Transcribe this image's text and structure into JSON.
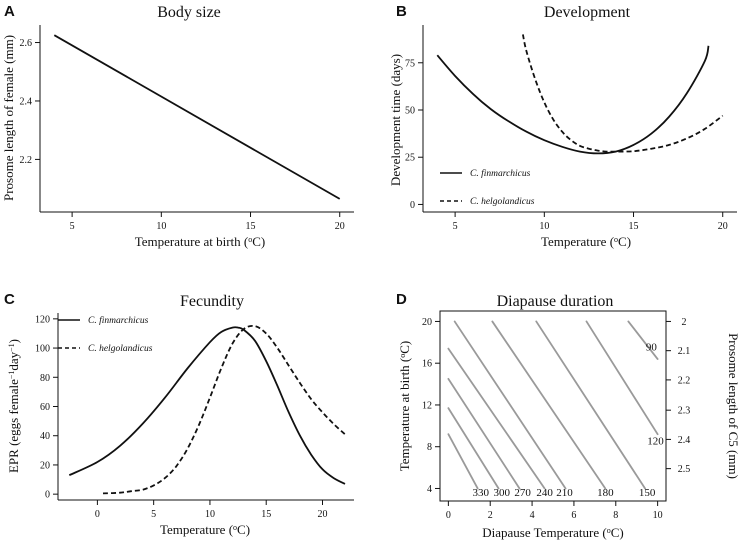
{
  "chart_data": [
    {
      "panel": "A",
      "type": "line",
      "title": "Body size",
      "xlabel": "Temperature at birth (°C)",
      "ylabel": "Prosome length of female (mm)",
      "xlim": [
        3.2,
        20.8
      ],
      "ylim": [
        2.02,
        2.66
      ],
      "x_ticks": [
        5,
        10,
        15,
        20
      ],
      "y_ticks": [
        2.2,
        2.4,
        2.6
      ],
      "series": [
        {
          "name": "Prosome length",
          "style": "solid",
          "x": [
            4,
            20
          ],
          "y": [
            2.625,
            2.065
          ]
        }
      ]
    },
    {
      "panel": "B",
      "type": "line",
      "title": "Development",
      "xlabel": "Temperature (°C)",
      "ylabel": "Development time (days)",
      "xlim": [
        3.2,
        20.8
      ],
      "ylim": [
        -4,
        95
      ],
      "x_ticks": [
        5,
        10,
        15,
        20
      ],
      "y_ticks": [
        0,
        25,
        50,
        75
      ],
      "legend": {
        "placement": "bottom-left",
        "entries": [
          {
            "label": "C. finmarchicus",
            "style": "solid"
          },
          {
            "label": "C. helgolandicus",
            "style": "dashed"
          }
        ]
      },
      "series": [
        {
          "name": "C. finmarchicus",
          "style": "solid",
          "x": [
            4,
            5,
            6,
            7,
            8,
            9,
            10,
            11,
            12,
            13,
            14,
            15,
            16,
            17,
            18,
            19,
            19.2
          ],
          "y": [
            79,
            68,
            58.5,
            50.5,
            44,
            38.5,
            34,
            30.5,
            28,
            27,
            28,
            31.5,
            37.5,
            46.5,
            59,
            76,
            84
          ]
        },
        {
          "name": "C. helgolandicus",
          "style": "dashed",
          "x": [
            8.8,
            9,
            9.5,
            10,
            10.5,
            11,
            11.5,
            12,
            12.5,
            13,
            13.5,
            14,
            15,
            16,
            17,
            18,
            19,
            20
          ],
          "y": [
            90,
            81,
            66,
            54,
            45,
            38.5,
            34,
            31,
            29.5,
            28.5,
            28,
            28,
            28.2,
            29.5,
            31.5,
            35,
            40,
            47
          ]
        }
      ]
    },
    {
      "panel": "C",
      "type": "line",
      "title": "Fecundity",
      "xlabel": "Temperature (°C)",
      "ylabel": "EPR (eggs female⁻¹day⁻¹)",
      "xlim": [
        -3.5,
        22.8
      ],
      "ylim": [
        -4,
        124
      ],
      "x_ticks": [
        0,
        5,
        10,
        15,
        20
      ],
      "y_ticks": [
        0,
        20,
        40,
        60,
        80,
        100,
        120
      ],
      "legend": {
        "placement": "top-left",
        "entries": [
          {
            "label": "C. finmarchicus",
            "style": "solid"
          },
          {
            "label": "C. helgolandicus",
            "style": "dashed"
          }
        ]
      },
      "series": [
        {
          "name": "C. finmarchicus",
          "style": "solid",
          "x": [
            -2.5,
            0,
            2,
            4,
            6,
            8,
            10,
            11,
            12,
            12.5,
            13,
            14,
            15,
            16,
            17,
            18,
            19,
            20,
            21,
            22
          ],
          "y": [
            13,
            22,
            33,
            48,
            66,
            86,
            104,
            111,
            114,
            114,
            112.5,
            105,
            91,
            74,
            56,
            40,
            27,
            17,
            11,
            7
          ]
        },
        {
          "name": "C. helgolandicus",
          "style": "dashed",
          "x": [
            0.5,
            2,
            3,
            4,
            5,
            6,
            7,
            8,
            9,
            10,
            11,
            12,
            13,
            14,
            15,
            16,
            17,
            18,
            19,
            20,
            21,
            22
          ],
          "y": [
            0.5,
            1,
            2,
            3,
            6,
            11,
            19,
            31,
            47,
            66,
            86,
            103,
            113,
            115,
            110,
            100,
            88,
            76,
            65,
            56,
            48,
            41
          ]
        }
      ]
    },
    {
      "panel": "D",
      "type": "contour",
      "title": "Diapause duration",
      "xlabel": "Diapause Temperature (°C)",
      "ylabel": "Temperature at birth (°C)",
      "ylabel_right": "Prosome length of C5 (mm)",
      "xlim": [
        -0.4,
        10.4
      ],
      "ylim": [
        2.8,
        21.0
      ],
      "x_ticks": [
        0,
        2,
        4,
        6,
        8,
        10
      ],
      "y_ticks": [
        4,
        8,
        12,
        16,
        20
      ],
      "y_ticks_right": [
        "2",
        "2.1",
        "2.2",
        "2.3",
        "2.4",
        "2.5"
      ],
      "y_ticks_right_at": [
        20.0,
        17.2,
        14.4,
        11.5,
        8.7,
        5.9
      ],
      "contours": [
        {
          "label": "330",
          "x": [
            0,
            1.4
          ],
          "y": [
            9.2,
            4.0
          ],
          "label_pos": [
            1.55,
            3.3
          ]
        },
        {
          "label": "300",
          "x": [
            0,
            2.4
          ],
          "y": [
            11.7,
            4.0
          ],
          "label_pos": [
            2.55,
            3.3
          ]
        },
        {
          "label": "270",
          "x": [
            0,
            3.4
          ],
          "y": [
            14.5,
            4.0
          ],
          "label_pos": [
            3.55,
            3.3
          ]
        },
        {
          "label": "240",
          "x": [
            0,
            4.6
          ],
          "y": [
            17.4,
            4.0
          ],
          "label_pos": [
            4.6,
            3.3
          ]
        },
        {
          "label": "210",
          "x": [
            0.3,
            5.6
          ],
          "y": [
            20.0,
            4.0
          ],
          "label_pos": [
            5.55,
            3.3
          ]
        },
        {
          "label": "180",
          "x": [
            2.1,
            7.5
          ],
          "y": [
            20.0,
            4.0
          ],
          "label_pos": [
            7.5,
            3.3
          ]
        },
        {
          "label": "150",
          "x": [
            4.2,
            9.4
          ],
          "y": [
            20.0,
            4.0
          ],
          "label_pos": [
            9.5,
            3.3
          ]
        },
        {
          "label": "120",
          "x": [
            6.6,
            10.0
          ],
          "y": [
            20.0,
            9.2
          ],
          "label_pos": [
            9.9,
            8.2
          ]
        },
        {
          "label": "90",
          "x": [
            8.6,
            10.0
          ],
          "y": [
            20.0,
            16.4
          ],
          "label_pos": [
            9.7,
            17.2
          ]
        }
      ]
    }
  ]
}
